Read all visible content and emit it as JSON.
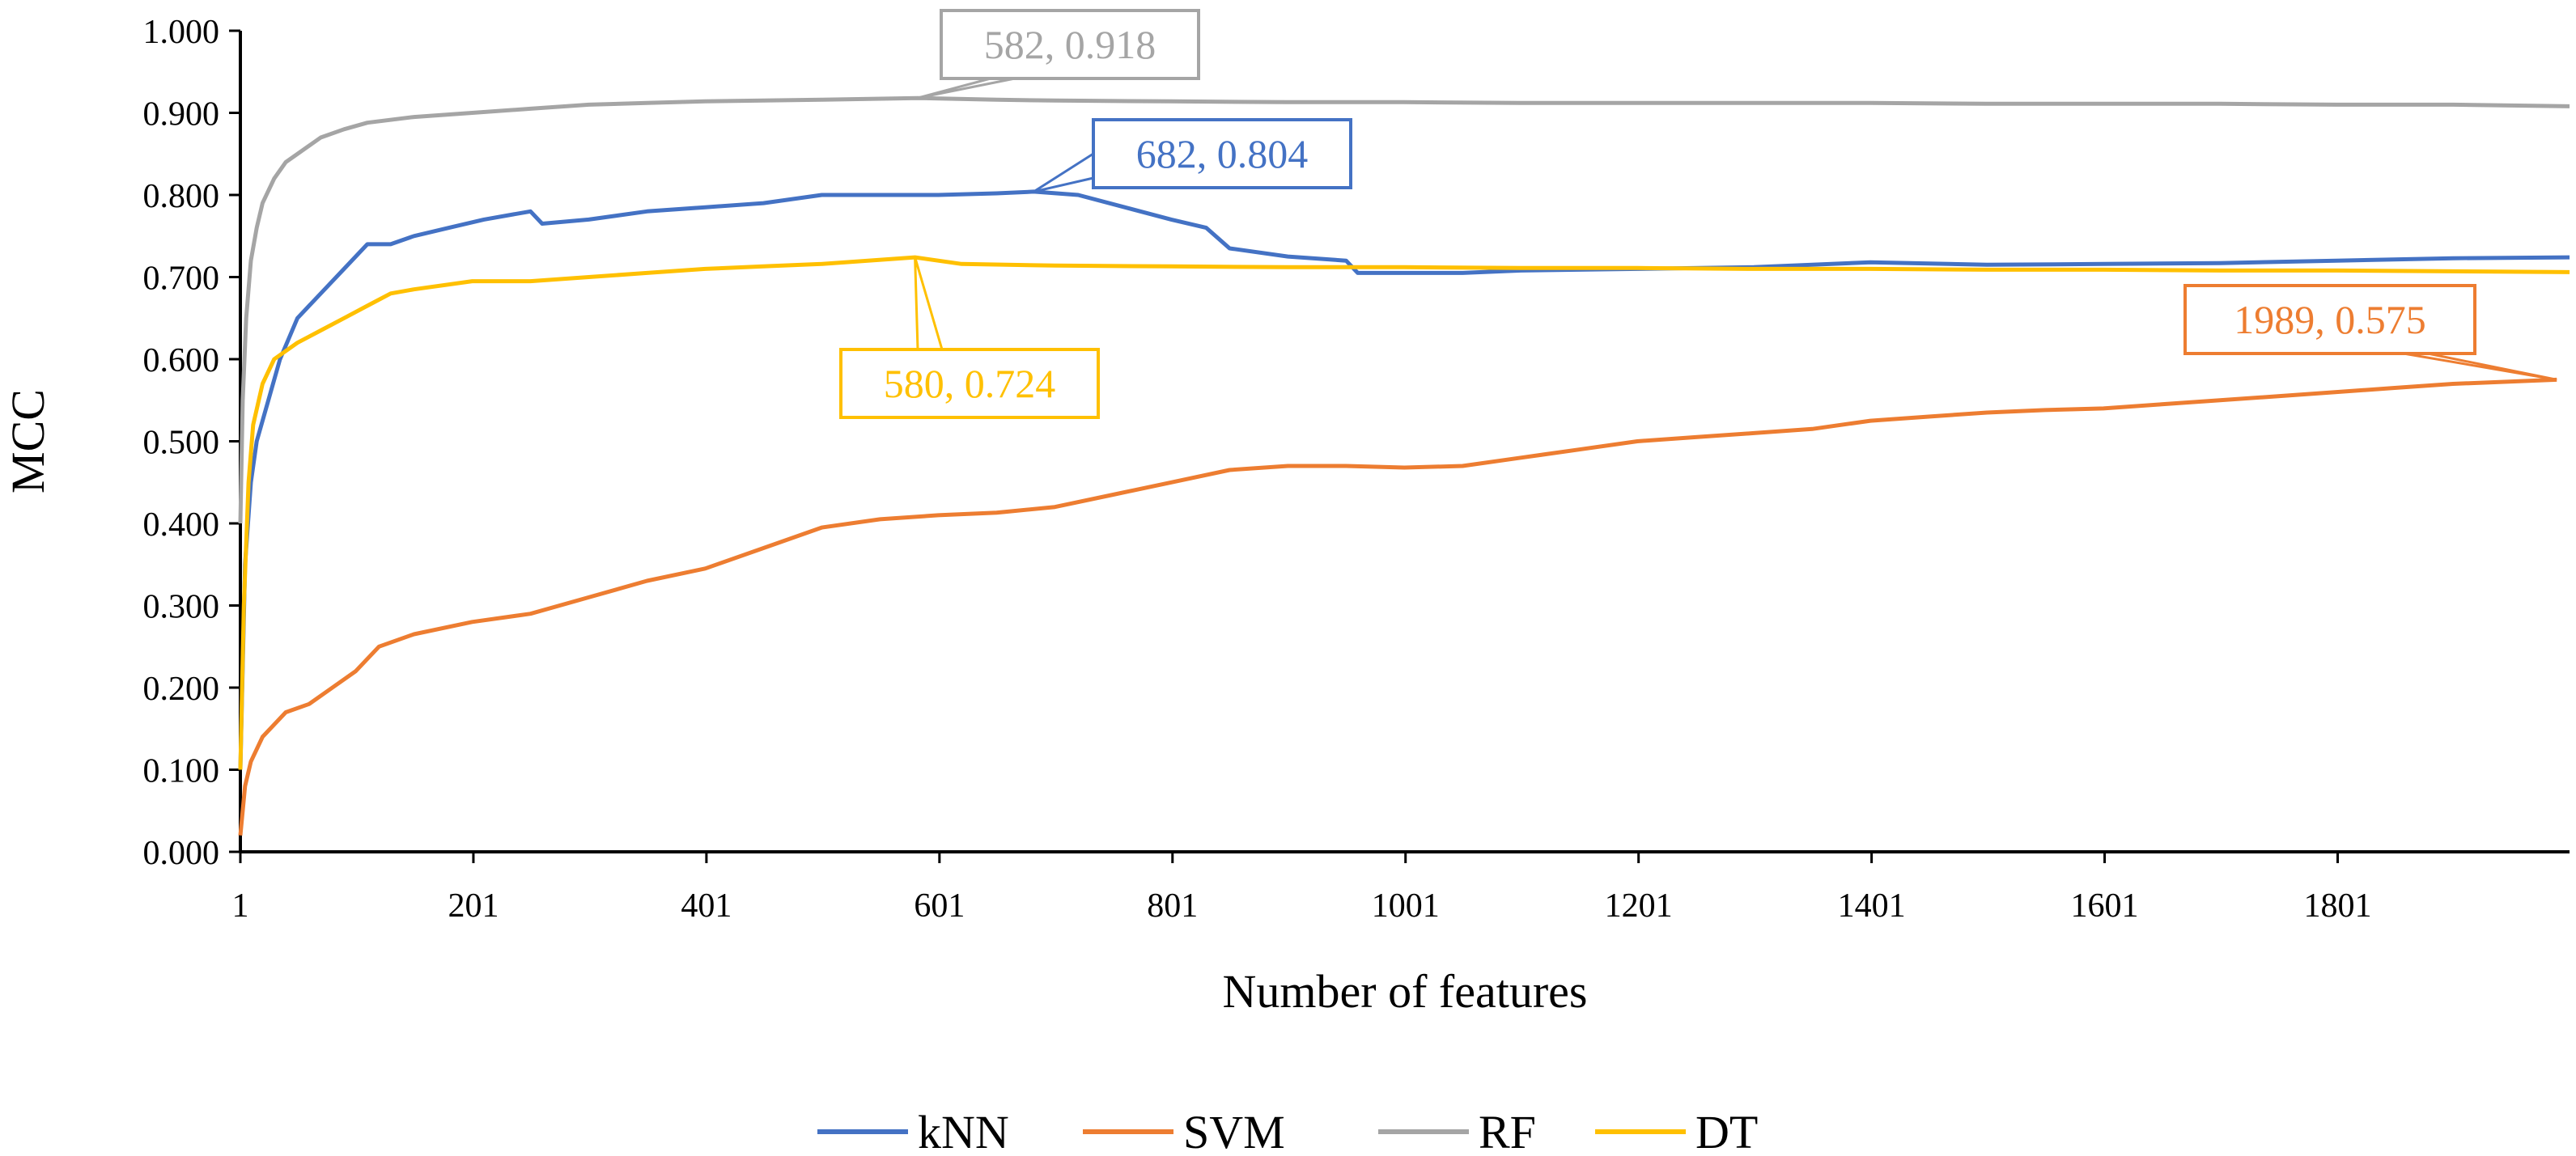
{
  "chart_data": {
    "type": "line",
    "xlabel": "Number of features",
    "ylabel": "MCC",
    "xlim": [
      1,
      2000
    ],
    "ylim": [
      0,
      1
    ],
    "x_ticks": [
      1,
      201,
      401,
      601,
      801,
      1001,
      1201,
      1401,
      1601,
      1801
    ],
    "x_tick_labels": [
      "1",
      "201",
      "401",
      "601",
      "801",
      "1001",
      "1201",
      "1401",
      "1601",
      "1801"
    ],
    "y_ticks": [
      0,
      0.1,
      0.2,
      0.3,
      0.4,
      0.5,
      0.6,
      0.7,
      0.8,
      0.9,
      1.0
    ],
    "y_tick_labels": [
      "0.000",
      "0.100",
      "0.200",
      "0.300",
      "0.400",
      "0.500",
      "0.600",
      "0.700",
      "0.800",
      "0.900",
      "1.000"
    ],
    "grid": false,
    "legend_position": "bottom",
    "series": [
      {
        "name": "kNN",
        "color": "#4472C4",
        "points": [
          [
            1,
            0.1
          ],
          [
            5,
            0.35
          ],
          [
            10,
            0.45
          ],
          [
            15,
            0.5
          ],
          [
            25,
            0.55
          ],
          [
            35,
            0.6
          ],
          [
            50,
            0.65
          ],
          [
            70,
            0.68
          ],
          [
            90,
            0.71
          ],
          [
            110,
            0.74
          ],
          [
            130,
            0.74
          ],
          [
            150,
            0.75
          ],
          [
            180,
            0.76
          ],
          [
            210,
            0.77
          ],
          [
            250,
            0.78
          ],
          [
            260,
            0.765
          ],
          [
            300,
            0.77
          ],
          [
            350,
            0.78
          ],
          [
            400,
            0.785
          ],
          [
            450,
            0.79
          ],
          [
            500,
            0.8
          ],
          [
            550,
            0.8
          ],
          [
            600,
            0.8
          ],
          [
            650,
            0.802
          ],
          [
            682,
            0.804
          ],
          [
            720,
            0.8
          ],
          [
            760,
            0.785
          ],
          [
            800,
            0.77
          ],
          [
            830,
            0.76
          ],
          [
            850,
            0.735
          ],
          [
            900,
            0.725
          ],
          [
            950,
            0.72
          ],
          [
            960,
            0.705
          ],
          [
            1000,
            0.705
          ],
          [
            1050,
            0.705
          ],
          [
            1100,
            0.708
          ],
          [
            1200,
            0.71
          ],
          [
            1300,
            0.712
          ],
          [
            1400,
            0.718
          ],
          [
            1500,
            0.715
          ],
          [
            1600,
            0.716
          ],
          [
            1700,
            0.717
          ],
          [
            1800,
            0.72
          ],
          [
            1900,
            0.723
          ],
          [
            2000,
            0.724
          ]
        ]
      },
      {
        "name": "SVM",
        "color": "#ED7D31",
        "points": [
          [
            1,
            0.02
          ],
          [
            5,
            0.08
          ],
          [
            10,
            0.11
          ],
          [
            20,
            0.14
          ],
          [
            40,
            0.17
          ],
          [
            60,
            0.18
          ],
          [
            80,
            0.2
          ],
          [
            100,
            0.22
          ],
          [
            120,
            0.25
          ],
          [
            150,
            0.265
          ],
          [
            200,
            0.28
          ],
          [
            250,
            0.29
          ],
          [
            300,
            0.31
          ],
          [
            350,
            0.33
          ],
          [
            400,
            0.345
          ],
          [
            450,
            0.37
          ],
          [
            500,
            0.395
          ],
          [
            550,
            0.405
          ],
          [
            600,
            0.41
          ],
          [
            650,
            0.413
          ],
          [
            700,
            0.42
          ],
          [
            750,
            0.435
          ],
          [
            800,
            0.45
          ],
          [
            850,
            0.465
          ],
          [
            900,
            0.47
          ],
          [
            950,
            0.47
          ],
          [
            1000,
            0.468
          ],
          [
            1050,
            0.47
          ],
          [
            1100,
            0.48
          ],
          [
            1150,
            0.49
          ],
          [
            1200,
            0.5
          ],
          [
            1250,
            0.505
          ],
          [
            1300,
            0.51
          ],
          [
            1350,
            0.515
          ],
          [
            1400,
            0.525
          ],
          [
            1450,
            0.53
          ],
          [
            1500,
            0.535
          ],
          [
            1550,
            0.538
          ],
          [
            1600,
            0.54
          ],
          [
            1650,
            0.545
          ],
          [
            1700,
            0.55
          ],
          [
            1750,
            0.555
          ],
          [
            1800,
            0.56
          ],
          [
            1850,
            0.565
          ],
          [
            1900,
            0.57
          ],
          [
            1989,
            0.575
          ]
        ]
      },
      {
        "name": "RF",
        "color": "#A5A5A5",
        "points": [
          [
            1,
            0.4
          ],
          [
            3,
            0.55
          ],
          [
            6,
            0.65
          ],
          [
            10,
            0.72
          ],
          [
            15,
            0.76
          ],
          [
            20,
            0.79
          ],
          [
            30,
            0.82
          ],
          [
            40,
            0.84
          ],
          [
            50,
            0.85
          ],
          [
            70,
            0.87
          ],
          [
            90,
            0.88
          ],
          [
            110,
            0.888
          ],
          [
            150,
            0.895
          ],
          [
            200,
            0.9
          ],
          [
            250,
            0.905
          ],
          [
            300,
            0.91
          ],
          [
            350,
            0.912
          ],
          [
            400,
            0.914
          ],
          [
            450,
            0.915
          ],
          [
            500,
            0.916
          ],
          [
            582,
            0.918
          ],
          [
            650,
            0.916
          ],
          [
            700,
            0.915
          ],
          [
            800,
            0.914
          ],
          [
            900,
            0.913
          ],
          [
            1000,
            0.913
          ],
          [
            1100,
            0.912
          ],
          [
            1200,
            0.912
          ],
          [
            1300,
            0.912
          ],
          [
            1400,
            0.912
          ],
          [
            1500,
            0.911
          ],
          [
            1600,
            0.911
          ],
          [
            1700,
            0.911
          ],
          [
            1800,
            0.91
          ],
          [
            1900,
            0.91
          ],
          [
            2000,
            0.908
          ]
        ]
      },
      {
        "name": "DT",
        "color": "#FFC000",
        "points": [
          [
            1,
            0.1
          ],
          [
            4,
            0.3
          ],
          [
            8,
            0.45
          ],
          [
            12,
            0.52
          ],
          [
            20,
            0.57
          ],
          [
            30,
            0.6
          ],
          [
            50,
            0.62
          ],
          [
            70,
            0.635
          ],
          [
            90,
            0.65
          ],
          [
            110,
            0.665
          ],
          [
            130,
            0.68
          ],
          [
            150,
            0.685
          ],
          [
            200,
            0.695
          ],
          [
            250,
            0.695
          ],
          [
            300,
            0.7
          ],
          [
            350,
            0.705
          ],
          [
            400,
            0.71
          ],
          [
            450,
            0.713
          ],
          [
            500,
            0.716
          ],
          [
            580,
            0.724
          ],
          [
            620,
            0.716
          ],
          [
            700,
            0.714
          ],
          [
            800,
            0.713
          ],
          [
            900,
            0.712
          ],
          [
            1000,
            0.712
          ],
          [
            1100,
            0.711
          ],
          [
            1200,
            0.711
          ],
          [
            1300,
            0.71
          ],
          [
            1400,
            0.71
          ],
          [
            1500,
            0.709
          ],
          [
            1600,
            0.709
          ],
          [
            1700,
            0.708
          ],
          [
            1800,
            0.708
          ],
          [
            1900,
            0.707
          ],
          [
            2000,
            0.706
          ]
        ]
      }
    ],
    "annotations": [
      {
        "series": "RF",
        "text": "582, 0.918",
        "x": 582,
        "y": 0.918,
        "color": "#A5A5A5"
      },
      {
        "series": "kNN",
        "text": "682, 0.804",
        "x": 682,
        "y": 0.804,
        "color": "#4472C4"
      },
      {
        "series": "DT",
        "text": "580, 0.724",
        "x": 580,
        "y": 0.724,
        "color": "#FFC000"
      },
      {
        "series": "SVM",
        "text": "1989, 0.575",
        "x": 1989,
        "y": 0.575,
        "color": "#ED7D31"
      }
    ]
  }
}
